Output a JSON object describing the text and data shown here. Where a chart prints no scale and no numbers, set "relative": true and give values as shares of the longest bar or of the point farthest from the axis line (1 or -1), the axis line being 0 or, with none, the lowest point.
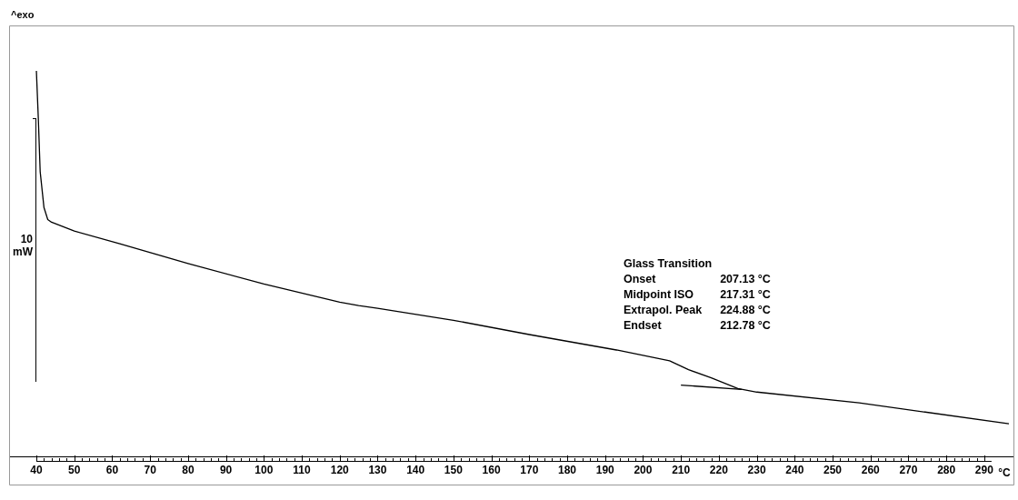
{
  "chart_data": {
    "type": "line",
    "relative": true,
    "ylabel": "10 mW",
    "xlabel": "°C",
    "xlim": [
      32.8,
      297.7
    ],
    "xticks": [
      40,
      50,
      60,
      70,
      80,
      90,
      100,
      110,
      120,
      130,
      140,
      150,
      160,
      170,
      180,
      190,
      200,
      210,
      220,
      230,
      240,
      250,
      260,
      270,
      280,
      290
    ],
    "grid": false,
    "legend": false,
    "marker": "none",
    "line_style": "solid",
    "annotations": [
      "^exo",
      "Glass Transition",
      "Onset 207.13 °C",
      "Midpoint ISO 217.31 °C",
      "Extrapol. Peak 224.88 °C",
      "Endset 212.78 °C"
    ],
    "series": [
      {
        "color": "#000000",
        "x": [
          40,
          40.5,
          41,
          42,
          43,
          44,
          50,
          62,
          80,
          100,
          120,
          125,
          130,
          150,
          170,
          193,
          207,
          212,
          218,
          225,
          230,
          257,
          296.5
        ],
        "values": [
          1.0,
          0.879,
          0.739,
          0.646,
          0.615,
          0.608,
          0.585,
          0.552,
          0.501,
          0.448,
          0.401,
          0.392,
          0.385,
          0.354,
          0.317,
          0.277,
          0.249,
          0.226,
          0.205,
          0.177,
          0.168,
          0.14,
          0.086
        ]
      },
      {
        "type": "line",
        "color": "#000000",
        "x": [
          210,
          226
        ],
        "values": [
          0.186,
          0.175
        ]
      }
    ]
  }
}
